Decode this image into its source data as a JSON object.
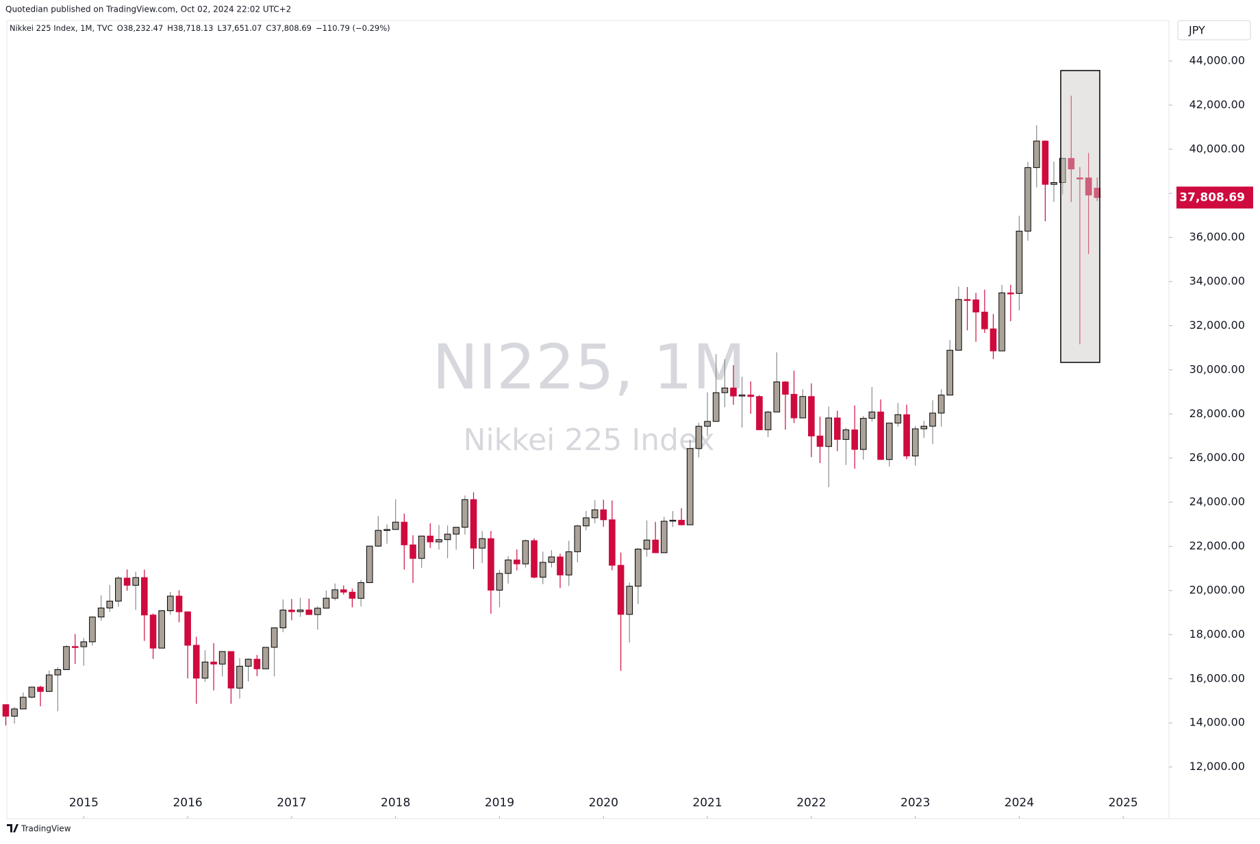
{
  "header": {
    "published": "Quotedian published on TradingView.com, Oct 02, 2024 22:02 UTC+2",
    "symbol": "Nikkei 225 Index, 1M, TVC",
    "ohlc": [
      "O38,232.47",
      "H38,718.13",
      "L37,651.07",
      "C37,808.69",
      "−110.79 (−0.29%)"
    ]
  },
  "watermark": [
    "NI225, 1M",
    "Nikkei 225 Index"
  ],
  "currency": "JPY",
  "footer": "TradingView",
  "chart_data": {
    "type": "candlestick",
    "up_color": "#aba39a",
    "down_color": "#cf0a3e",
    "up_wick": "#8a8a8a",
    "xlim": [
      2014.26,
      2025.44
    ],
    "xticks": [
      2015,
      2016,
      2017,
      2018,
      2019,
      2020,
      2021,
      2022,
      2023,
      2024,
      2025
    ],
    "ylim": [
      9660,
      45830
    ],
    "yticks": [
      {
        "value": 12000,
        "label": "12,000.00"
      },
      {
        "value": 14000,
        "label": "14,000.00"
      },
      {
        "value": 16000,
        "label": "16,000.00"
      },
      {
        "value": 18000,
        "label": "18,000.00"
      },
      {
        "value": 20000,
        "label": "20,000.00"
      },
      {
        "value": 22000,
        "label": "22,000.00"
      },
      {
        "value": 24000,
        "label": "24,000.00"
      },
      {
        "value": 26000,
        "label": "26,000.00"
      },
      {
        "value": 28000,
        "label": "28,000.00"
      },
      {
        "value": 30000,
        "label": "30,000.00"
      },
      {
        "value": 32000,
        "label": "32,000.00"
      },
      {
        "value": 34000,
        "label": "34,000.00"
      },
      {
        "value": 36000,
        "label": "36,000.00"
      },
      {
        "value": 38000,
        "label": "38,000.00"
      },
      {
        "value": 40000,
        "label": "40,000.00"
      },
      {
        "value": 42000,
        "label": "42,000.00"
      },
      {
        "value": 44000,
        "label": "44,000.00"
      }
    ],
    "last_price_label": "37,808.69",
    "x": [
      2014.25,
      2014.333,
      2014.417,
      2014.5,
      2014.583,
      2014.667,
      2014.75,
      2014.833,
      2014.917,
      2015,
      2015.083,
      2015.167,
      2015.25,
      2015.333,
      2015.417,
      2015.5,
      2015.583,
      2015.667,
      2015.75,
      2015.833,
      2015.917,
      2016,
      2016.083,
      2016.167,
      2016.25,
      2016.333,
      2016.417,
      2016.5,
      2016.583,
      2016.667,
      2016.75,
      2016.833,
      2016.917,
      2017,
      2017.083,
      2017.167,
      2017.25,
      2017.333,
      2017.417,
      2017.5,
      2017.583,
      2017.667,
      2017.75,
      2017.833,
      2017.917,
      2018,
      2018.083,
      2018.167,
      2018.25,
      2018.333,
      2018.417,
      2018.5,
      2018.583,
      2018.667,
      2018.75,
      2018.833,
      2018.917,
      2019,
      2019.083,
      2019.167,
      2019.25,
      2019.333,
      2019.417,
      2019.5,
      2019.583,
      2019.667,
      2019.75,
      2019.833,
      2019.917,
      2020,
      2020.083,
      2020.167,
      2020.25,
      2020.333,
      2020.417,
      2020.5,
      2020.583,
      2020.667,
      2020.75,
      2020.833,
      2020.917,
      2021,
      2021.083,
      2021.167,
      2021.25,
      2021.333,
      2021.417,
      2021.5,
      2021.583,
      2021.667,
      2021.75,
      2021.833,
      2021.917,
      2022,
      2022.083,
      2022.167,
      2022.25,
      2022.333,
      2022.417,
      2022.5,
      2022.583,
      2022.667,
      2022.75,
      2022.833,
      2022.917,
      2023,
      2023.083,
      2023.167,
      2023.25,
      2023.333,
      2023.417,
      2023.5,
      2023.583,
      2023.667,
      2023.75,
      2023.833,
      2023.917,
      2024,
      2024.083,
      2024.167,
      2024.25,
      2024.333,
      2024.417,
      2024.5,
      2024.583,
      2024.667,
      2024.75
    ],
    "open": [
      14828,
      14304,
      14632,
      15162,
      15621,
      15425,
      16174,
      16414,
      17460,
      17451,
      17674,
      18798,
      19207,
      19520,
      20563,
      20236,
      20585,
      18890,
      17388,
      19083,
      19747,
      19034,
      17518,
      16027,
      16759,
      16666,
      17235,
      15576,
      16569,
      16887,
      16450,
      17425,
      18308,
      19114,
      19041,
      19119,
      18909,
      19197,
      19651,
      20033,
      19925,
      19646,
      20356,
      22012,
      22725,
      22765,
      23098,
      22068,
      21454,
      22468,
      22202,
      22305,
      22554,
      22865,
      24120,
      21920,
      22351,
      20015,
      20773,
      21385,
      21206,
      22259,
      20601,
      21276,
      21522,
      20704,
      21756,
      22927,
      23294,
      23657,
      23205,
      21143,
      18917,
      20194,
      21877,
      22288,
      21710,
      23140,
      23185,
      22977,
      26434,
      27444,
      27663,
      28966,
      29179,
      28813,
      28860,
      28792,
      27284,
      28090,
      29453,
      28892,
      27822,
      28792,
      27002,
      26527,
      27821,
      26848,
      27280,
      26393,
      27802,
      28092,
      25937,
      27587,
      27968,
      26095,
      27327,
      27446,
      28041,
      28856,
      30888,
      33189,
      33172,
      32619,
      31858,
      30859,
      33487,
      33464,
      36287,
      39166,
      40369,
      38406,
      38488,
      39583,
      38700,
      38700,
      38232
    ],
    "high": [
      14849,
      14730,
      15376,
      15646,
      15679,
      16374,
      16533,
      17520,
      18030,
      17850,
      18826,
      19778,
      20252,
      20655,
      20953,
      20850,
      20946,
      18955,
      19115,
      19937,
      20012,
      19034,
      17905,
      17291,
      17613,
      17251,
      17235,
      16938,
      16919,
      17078,
      17425,
      18308,
      19592,
      19615,
      19668,
      19633,
      19289,
      19998,
      20318,
      20230,
      20080,
      20481,
      22012,
      23382,
      23000,
      24129,
      23486,
      22502,
      22468,
      23050,
      22966,
      22949,
      22869,
      24306,
      24448,
      22698,
      22698,
      20941,
      21556,
      21860,
      22307,
      22362,
      21759,
      21823,
      21667,
      22255,
      22974,
      23608,
      24092,
      24116,
      24083,
      21719,
      20365,
      21917,
      23178,
      23111,
      23338,
      23599,
      23726,
      26834,
      27602,
      28979,
      30714,
      30485,
      30208,
      29686,
      29480,
      28852,
      28139,
      30795,
      29490,
      29960,
      29121,
      29388,
      27880,
      28338,
      28150,
      27369,
      28389,
      27914,
      29222,
      28659,
      27587,
      28502,
      28423,
      27450,
      27697,
      28623,
      29123,
      31352,
      33772,
      33753,
      33488,
      33634,
      32533,
      33853,
      33853,
      36984,
      39426,
      41087,
      40398,
      39437,
      39583,
      42426,
      39188,
      39829,
      38718.13
    ],
    "low": [
      13885,
      13965,
      14632,
      15114,
      14753,
      15425,
      14529,
      16414,
      16672,
      16592,
      17505,
      18630,
      19034,
      19260,
      19990,
      19115,
      17714,
      16901,
      17388,
      18900,
      18562,
      16017,
      14865,
      15859,
      15471,
      16106,
      14864,
      15106,
      15877,
      16120,
      16450,
      16111,
      18113,
      18650,
      18805,
      18909,
      18224,
      19197,
      19551,
      19813,
      19239,
      19280,
      20356,
      21972,
      22119,
      22765,
      20950,
      20347,
      21031,
      21931,
      21853,
      21462,
      21851,
      22531,
      20971,
      21243,
      18949,
      19241,
      20315,
      20911,
      21038,
      20551,
      20289,
      21046,
      20110,
      20204,
      21276,
      22726,
      23044,
      22892,
      20916,
      16358,
      17646,
      19389,
      21530,
      21710,
      21710,
      22878,
      22948,
      22977,
      26036,
      27002,
      27663,
      28308,
      28419,
      27385,
      28010,
      27273,
      26954,
      28090,
      27293,
      27588,
      27893,
      26044,
      25775,
      24681,
      26319,
      25688,
      25520,
      25935,
      27650,
      25937,
      25621,
      27423,
      25953,
      25662,
      26914,
      26632,
      27427,
      28856,
      30888,
      31791,
      31275,
      31674,
      30487,
      30859,
      32205,
      32693,
      35854,
      38271,
      36733,
      37617,
      37950,
      37611,
      31156,
      35247,
      37651.07
    ],
    "close": [
      14304,
      14632,
      15162,
      15621,
      15425,
      16174,
      16414,
      17460,
      17451,
      17674,
      18798,
      19207,
      19520,
      20563,
      20236,
      20585,
      18890,
      17388,
      19083,
      19747,
      19034,
      17518,
      16027,
      16759,
      16666,
      17235,
      15576,
      16569,
      16887,
      16450,
      17425,
      18308,
      19114,
      19041,
      19119,
      18909,
      19197,
      19651,
      20033,
      19925,
      19646,
      20356,
      22012,
      22725,
      22765,
      23098,
      22068,
      21454,
      22468,
      22202,
      22305,
      22554,
      22865,
      24120,
      21920,
      22351,
      20015,
      20773,
      21385,
      21206,
      22259,
      20601,
      21276,
      21522,
      20704,
      21756,
      22927,
      23294,
      23657,
      23205,
      21143,
      18917,
      20194,
      21877,
      22288,
      21710,
      23140,
      23185,
      22977,
      26434,
      27444,
      27663,
      28966,
      29179,
      28813,
      28860,
      28792,
      27284,
      28090,
      29453,
      28892,
      27822,
      28792,
      27002,
      26527,
      27821,
      26848,
      27280,
      26393,
      27802,
      28092,
      25937,
      27587,
      27968,
      26095,
      27327,
      27446,
      28041,
      28856,
      30888,
      33189,
      33172,
      32619,
      31858,
      30859,
      33487,
      33464,
      36287,
      39166,
      40369,
      38406,
      38488,
      39583,
      39102,
      38648,
      37920,
      37808.69
    ]
  }
}
